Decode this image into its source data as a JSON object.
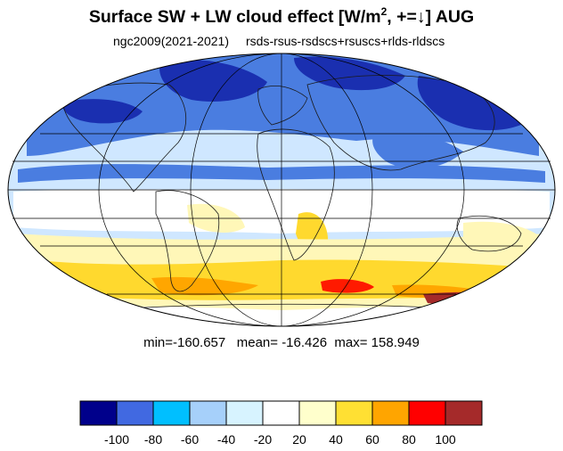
{
  "title": {
    "main": "Surface SW + LW cloud effect [W/m",
    "sup": "2",
    "tail": ", +=↓]  AUG"
  },
  "subtitle": {
    "left": "ngc2009(2021-2021)",
    "right": "rsds-rsus-rsdscs+rsuscs+rlds-rldscs"
  },
  "stats": {
    "text": "min=-160.657   mean= -16.426  max= 158.949",
    "min": -160.657,
    "mean": -16.426,
    "max": 158.949
  },
  "colorbar": {
    "colors": [
      "#00008b",
      "#4169e1",
      "#00bfff",
      "#a6d0fa",
      "#d7f3ff",
      "#ffffff",
      "#ffffcc",
      "#ffe033",
      "#ffa500",
      "#ff0000",
      "#a52a2a"
    ],
    "labels": [
      "-100",
      "-80",
      "-60",
      "-40",
      "-20",
      "20",
      "40",
      "60",
      "80",
      "100"
    ]
  },
  "map": {
    "projection": "mollweide",
    "colors": {
      "ocean_outline": "#000000",
      "grid": "#000000",
      "deep_negative": "#1a2fb0",
      "mid_negative": "#4a7de0",
      "light_negative": "#cfe7ff",
      "neutral": "#ffffff",
      "light_positive": "#fff7b8",
      "mid_positive": "#ffd92e",
      "strong_positive": "#ffa600",
      "max_positive": "#ff1a00",
      "extreme": "#a52a2a"
    }
  }
}
